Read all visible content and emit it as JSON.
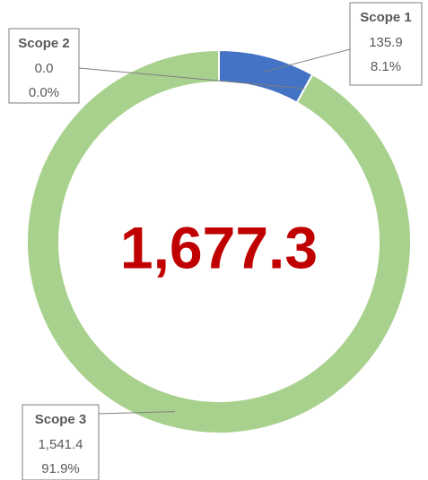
{
  "chart_data": {
    "type": "donut",
    "categories": [
      "Scope 1",
      "Scope 2",
      "Scope 3"
    ],
    "values": [
      135.9,
      0.0,
      1541.4
    ],
    "value_labels": [
      "135.9",
      "0.0",
      "1,541.4"
    ],
    "percents": [
      8.1,
      0.0,
      91.9
    ],
    "percent_labels": [
      "8.1%",
      "0.0%",
      "91.9%"
    ],
    "colors": [
      "#4472c4",
      "#ed7d31",
      "#a9d18e"
    ],
    "center_label": "1,677.3",
    "center_color": "#c00000"
  }
}
